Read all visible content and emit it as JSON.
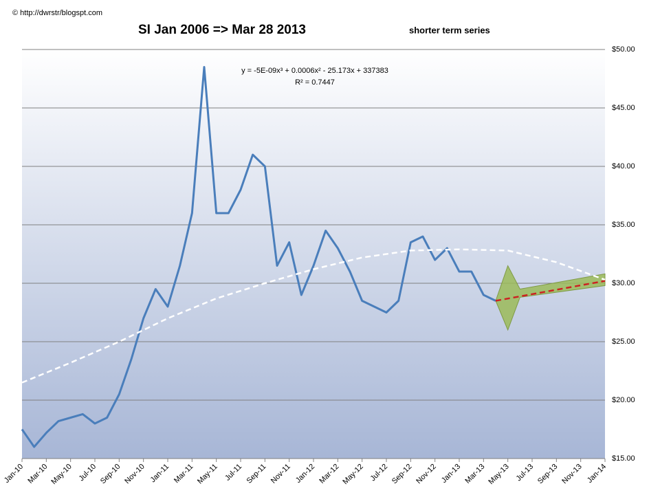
{
  "chart_data": {
    "type": "line",
    "title": "SI Jan 2006 => Mar 28 2013",
    "subtitle": "shorter term series",
    "annotations": [
      "© http://dwrstr/blogspt.com",
      "y = -5E-09x³ + 0.0006x² - 25.173x + 337383",
      "R² = 0.7447"
    ],
    "xlim": [
      "2010-01",
      "2014-01"
    ],
    "xticks": [
      {
        "value": "2010-01",
        "label": "Jan-10"
      },
      {
        "value": "2010-03",
        "label": "Mar-10"
      },
      {
        "value": "2010-05",
        "label": "May-10"
      },
      {
        "value": "2010-07",
        "label": "Jul-10"
      },
      {
        "value": "2010-09",
        "label": "Sep-10"
      },
      {
        "value": "2010-11",
        "label": "Nov-10"
      },
      {
        "value": "2011-01",
        "label": "Jan-11"
      },
      {
        "value": "2011-03",
        "label": "Mar-11"
      },
      {
        "value": "2011-05",
        "label": "May-11"
      },
      {
        "value": "2011-07",
        "label": "Jul-11"
      },
      {
        "value": "2011-09",
        "label": "Sep-11"
      },
      {
        "value": "2011-11",
        "label": "Nov-11"
      },
      {
        "value": "2012-01",
        "label": "Jan-12"
      },
      {
        "value": "2012-03",
        "label": "Mar-12"
      },
      {
        "value": "2012-05",
        "label": "May-12"
      },
      {
        "value": "2012-07",
        "label": "Jul-12"
      },
      {
        "value": "2012-09",
        "label": "Sep-12"
      },
      {
        "value": "2012-11",
        "label": "Nov-12"
      },
      {
        "value": "2013-01",
        "label": "Jan-13"
      },
      {
        "value": "2013-03",
        "label": "Mar-13"
      },
      {
        "value": "2013-05",
        "label": "May-13"
      },
      {
        "value": "2013-07",
        "label": "Jul-13"
      },
      {
        "value": "2013-09",
        "label": "Sep-13"
      },
      {
        "value": "2013-11",
        "label": "Nov-13"
      },
      {
        "value": "2014-01",
        "label": "Jan-14"
      }
    ],
    "ylim": [
      15,
      50
    ],
    "yticks": [
      {
        "value": 15,
        "label": "$15.00"
      },
      {
        "value": 20,
        "label": "$20.00"
      },
      {
        "value": 25,
        "label": "$25.00"
      },
      {
        "value": 30,
        "label": "$30.00"
      },
      {
        "value": 35,
        "label": "$35.00"
      },
      {
        "value": 40,
        "label": "$40.00"
      },
      {
        "value": 45,
        "label": "$45.00"
      },
      {
        "value": 50,
        "label": "$50.00"
      }
    ],
    "grid": true,
    "series": [
      {
        "color": "#4a7ebb",
        "style": "solid",
        "x": [
          "2010-01",
          "2010-02",
          "2010-03",
          "2010-04",
          "2010-05",
          "2010-06",
          "2010-07",
          "2010-08",
          "2010-09",
          "2010-10",
          "2010-11",
          "2010-12",
          "2011-01",
          "2011-02",
          "2011-03",
          "2011-04",
          "2011-05",
          "2011-06",
          "2011-07",
          "2011-08",
          "2011-09",
          "2011-10",
          "2011-11",
          "2011-12",
          "2012-01",
          "2012-02",
          "2012-03",
          "2012-04",
          "2012-05",
          "2012-06",
          "2012-07",
          "2012-08",
          "2012-09",
          "2012-10",
          "2012-11",
          "2012-12",
          "2013-01",
          "2013-02",
          "2013-03",
          "2013-04"
        ],
        "values": [
          17.5,
          16.0,
          17.2,
          18.2,
          18.5,
          18.8,
          18.0,
          18.5,
          20.5,
          23.5,
          27.0,
          29.5,
          28.0,
          31.5,
          36.0,
          48.5,
          36.0,
          36.0,
          38.0,
          41.0,
          40.0,
          31.5,
          33.5,
          29.0,
          31.5,
          34.5,
          33.0,
          31.0,
          28.5,
          28.0,
          27.5,
          28.5,
          33.5,
          34.0,
          32.0,
          33.0,
          31.0,
          31.0,
          29.0,
          28.5
        ]
      },
      {
        "color": "#ffffff",
        "style": "dashed",
        "x": [
          "2010-01",
          "2010-05",
          "2010-09",
          "2011-01",
          "2011-05",
          "2011-09",
          "2012-01",
          "2012-05",
          "2012-09",
          "2013-01",
          "2013-05",
          "2013-09",
          "2014-01"
        ],
        "values": [
          21.5,
          23.2,
          25.0,
          27.0,
          28.7,
          30.0,
          31.2,
          32.2,
          32.8,
          32.9,
          32.8,
          31.8,
          30.3
        ]
      },
      {
        "color": "#cc2222",
        "style": "dashed",
        "x": [
          "2013-04",
          "2014-01"
        ],
        "values": [
          28.5,
          30.2
        ]
      }
    ],
    "forecast_band": {
      "color": "#9bbb59",
      "x": [
        "2013-04",
        "2013-05",
        "2013-06",
        "2014-01"
      ],
      "lower": [
        28.5,
        26.0,
        28.8,
        29.8
      ],
      "upper": [
        28.5,
        31.5,
        29.5,
        30.8
      ]
    }
  }
}
